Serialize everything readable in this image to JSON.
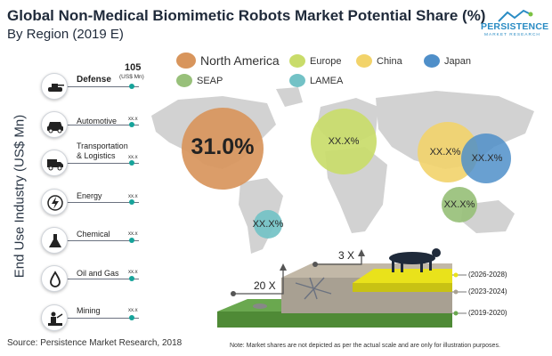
{
  "header": {
    "title": "Global Non-Medical Biomimetic Robots Market Potential Share (%)",
    "subtitle": "By Region (2019 E)"
  },
  "logo": {
    "main": "PERSISTENCE",
    "sub": "MARKET RESEARCH"
  },
  "y_axis_label": "End Use Industry (US$ Mn)",
  "industries": [
    {
      "label": "Defense",
      "value": "105",
      "unit": "(US$ Mn)",
      "icon": "tank-icon"
    },
    {
      "label": "Automotive",
      "value": "xx.x",
      "icon": "car-icon"
    },
    {
      "label": "Transportation & Logistics",
      "value": "xx.x",
      "icon": "truck-icon"
    },
    {
      "label": "Energy",
      "value": "xx.x",
      "icon": "lightning-icon"
    },
    {
      "label": "Chemical",
      "value": "xx.x",
      "icon": "flask-icon"
    },
    {
      "label": "Oil and Gas",
      "value": "xx.x",
      "icon": "oil-drop-icon"
    },
    {
      "label": "Mining",
      "value": "xx.x",
      "icon": "miner-icon"
    }
  ],
  "legend": [
    {
      "name": "North America",
      "color": "#d8955c"
    },
    {
      "name": "Europe",
      "color": "#c9dc6a"
    },
    {
      "name": "China",
      "color": "#f2d36a"
    },
    {
      "name": "Japan",
      "color": "#4f8fc9"
    },
    {
      "name": "SEAP",
      "color": "#98c07a"
    },
    {
      "name": "LAMEA",
      "color": "#73c2c6"
    }
  ],
  "chart_data": {
    "type": "bubble-map",
    "title": "Global Non-Medical Biomimetic Robots Market Potential Share (%)",
    "subtitle": "By Region (2019 E)",
    "series": [
      {
        "name": "North America",
        "label": "31.0%",
        "value": 31.0
      },
      {
        "name": "Europe",
        "label": "XX.X%"
      },
      {
        "name": "China",
        "label": "XX.X%"
      },
      {
        "name": "Japan",
        "label": "XX.X%"
      },
      {
        "name": "SEAP",
        "label": "XX.X%"
      },
      {
        "name": "LAMEA",
        "label": "XX.X%"
      }
    ]
  },
  "growth": {
    "multipliers": [
      "20 X",
      "3 X"
    ],
    "phases": [
      "(2026-2028)",
      "(2023-2024)",
      "(2019-2020)"
    ]
  },
  "footer": {
    "source": "Source: Persistence Market Research, 2018",
    "note": "Note: Market shares are not depicted as per the actual scale and are only for illustration purposes."
  }
}
